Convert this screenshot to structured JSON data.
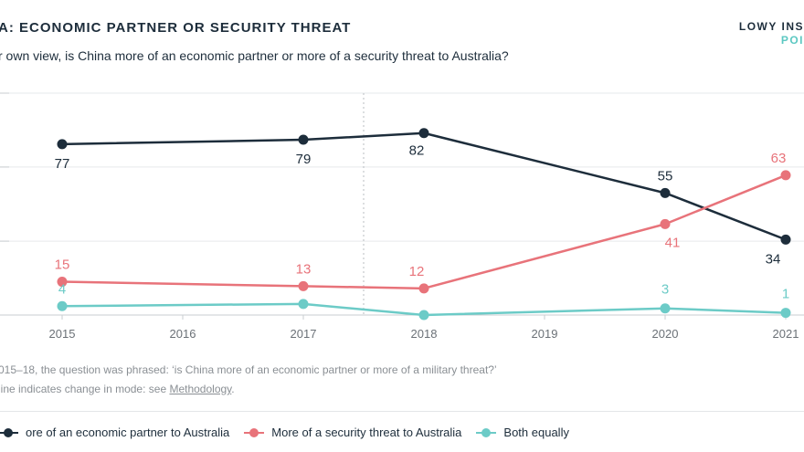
{
  "header": {
    "title": "A: ECONOMIC PARTNER OR SECURITY THREAT",
    "brand": "LOWY INS",
    "brand_sub": "POI",
    "subtitle": "r own view, is China more of an economic partner or more of a security threat to Australia?"
  },
  "notes": {
    "line1": "015–18, the question was phrased: ‘is China more of an economic partner or more of a military threat?’",
    "line2_prefix": "line indicates change in mode: see ",
    "line2_link": "Methodology",
    "line2_suffix": "."
  },
  "chart_data": {
    "type": "line",
    "title": "A: ECONOMIC PARTNER OR SECURITY THREAT",
    "xlabel": "",
    "ylabel": "",
    "ylim": [
      0,
      100
    ],
    "x_ticks": [
      2015,
      2016,
      2017,
      2018,
      2019,
      2020,
      2021
    ],
    "mode_change_after": 2017.5,
    "grid": "horizontal",
    "series": [
      {
        "name": "ore of an economic partner to Australia",
        "color": "#1d2d3b",
        "points": [
          [
            2015,
            77
          ],
          [
            2017,
            79
          ],
          [
            2018,
            82
          ],
          [
            2020,
            55
          ],
          [
            2021,
            34
          ]
        ],
        "labels": [
          "77",
          "79",
          "82",
          "55",
          "34"
        ]
      },
      {
        "name": "More of a security threat to Australia",
        "color": "#e8737a",
        "points": [
          [
            2015,
            15
          ],
          [
            2017,
            13
          ],
          [
            2018,
            12
          ],
          [
            2020,
            41
          ],
          [
            2021,
            63
          ]
        ],
        "labels": [
          "15",
          "13",
          "12",
          "41",
          "63"
        ]
      },
      {
        "name": "Both equally",
        "color": "#6ccbc7",
        "points": [
          [
            2015,
            4
          ],
          [
            2017,
            5
          ],
          [
            2018,
            0
          ],
          [
            2020,
            3
          ],
          [
            2021,
            1
          ]
        ],
        "labels": [
          "4",
          "",
          "",
          "3",
          "1"
        ]
      }
    ]
  }
}
